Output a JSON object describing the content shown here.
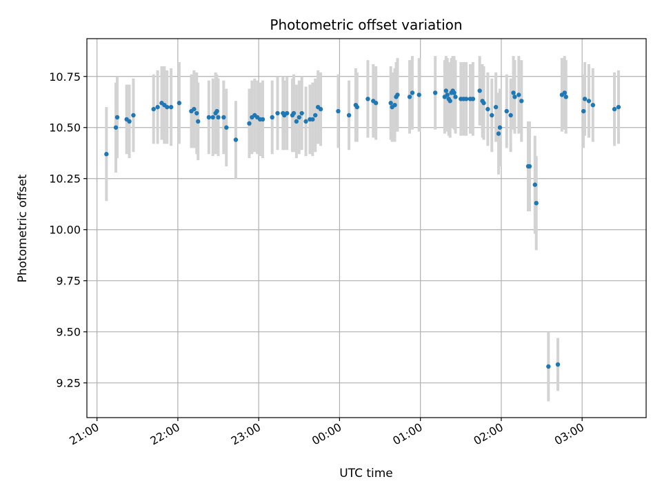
{
  "chart_data": {
    "type": "scatter",
    "title": "Photometric offset variation",
    "xlabel": "UTC time",
    "ylabel": "Photometric offset",
    "x_tick_labels": [
      "21:00",
      "22:00",
      "23:00",
      "00:00",
      "01:00",
      "02:00",
      "03:00"
    ],
    "y_tick_labels": [
      "9.25",
      "9.50",
      "9.75",
      "10.00",
      "10.25",
      "10.50",
      "10.75"
    ],
    "grid": true,
    "colors": {
      "points": "#1f77b4",
      "errorbars": "#d3d3d3",
      "grid": "#b0b0b0"
    },
    "series": [
      {
        "x": [
          "21:07",
          "21:14",
          "21:15",
          "21:22",
          "21:24",
          "21:27",
          "21:42",
          "21:45",
          "21:48",
          "21:50",
          "21:52",
          "21:55",
          "22:01",
          "22:10",
          "22:12",
          "22:14",
          "22:15",
          "22:23",
          "22:26",
          "22:28",
          "22:29",
          "22:30",
          "22:34",
          "22:36",
          "22:43",
          "22:53",
          "22:55",
          "22:57",
          "22:59",
          "23:01",
          "23:03",
          "23:10",
          "23:14",
          "23:18",
          "23:19",
          "23:21",
          "23:25",
          "23:26",
          "23:28",
          "23:30",
          "23:32",
          "23:35",
          "23:38",
          "23:40",
          "23:42",
          "23:44",
          "23:46",
          "23:59",
          "00:07",
          "00:12",
          "00:13",
          "00:21",
          "00:25",
          "00:27",
          "00:38",
          "00:39",
          "00:41",
          "00:42",
          "00:43",
          "00:52",
          "00:54",
          "00:59",
          "01:11",
          "01:18",
          "01:19",
          "01:20",
          "01:21",
          "01:22",
          "01:23",
          "01:24",
          "01:25",
          "01:26",
          "01:30",
          "01:32",
          "01:34",
          "01:37",
          "01:39",
          "01:44",
          "01:46",
          "01:47",
          "01:50",
          "01:53",
          "01:56",
          "01:58",
          "01:59",
          "02:04",
          "02:07",
          "02:09",
          "02:10",
          "02:13",
          "02:15",
          "02:20",
          "02:21",
          "02:25",
          "02:26",
          "02:35",
          "02:42",
          "02:45",
          "02:47",
          "02:48",
          "03:01",
          "03:02",
          "03:05",
          "03:08",
          "03:24",
          "03:27"
        ],
        "y": [
          10.37,
          10.5,
          10.55,
          10.54,
          10.53,
          10.56,
          10.59,
          10.6,
          10.62,
          10.61,
          10.6,
          10.6,
          10.62,
          10.58,
          10.59,
          10.57,
          10.53,
          10.55,
          10.55,
          10.57,
          10.58,
          10.55,
          10.55,
          10.5,
          10.44,
          10.52,
          10.55,
          10.56,
          10.55,
          10.54,
          10.54,
          10.55,
          10.57,
          10.57,
          10.56,
          10.57,
          10.56,
          10.57,
          10.53,
          10.55,
          10.57,
          10.53,
          10.54,
          10.54,
          10.56,
          10.6,
          10.59,
          10.58,
          10.56,
          10.61,
          10.6,
          10.64,
          10.63,
          10.62,
          10.62,
          10.6,
          10.61,
          10.65,
          10.66,
          10.65,
          10.67,
          10.66,
          10.67,
          10.65,
          10.68,
          10.66,
          10.64,
          10.63,
          10.67,
          10.68,
          10.67,
          10.65,
          10.64,
          10.64,
          10.64,
          10.64,
          10.64,
          10.68,
          10.63,
          10.62,
          10.59,
          10.56,
          10.6,
          10.47,
          10.5,
          10.58,
          10.56,
          10.67,
          10.65,
          10.66,
          10.63,
          10.31,
          10.31,
          10.22,
          10.13,
          9.33,
          9.34,
          10.66,
          10.67,
          10.65,
          10.58,
          10.64,
          10.63,
          10.61,
          10.59,
          10.6
        ],
        "err": [
          0.23,
          0.22,
          0.2,
          0.17,
          0.18,
          0.18,
          0.17,
          0.18,
          0.18,
          0.19,
          0.18,
          0.19,
          0.2,
          0.18,
          0.19,
          0.2,
          0.19,
          0.18,
          0.19,
          0.2,
          0.18,
          0.19,
          0.18,
          0.19,
          0.19,
          0.17,
          0.18,
          0.18,
          0.18,
          0.18,
          0.19,
          0.18,
          0.18,
          0.18,
          0.17,
          0.18,
          0.18,
          0.19,
          0.18,
          0.18,
          0.18,
          0.17,
          0.17,
          0.18,
          0.18,
          0.18,
          0.18,
          0.18,
          0.17,
          0.18,
          0.17,
          0.19,
          0.18,
          0.18,
          0.18,
          0.17,
          0.18,
          0.17,
          0.18,
          0.18,
          0.18,
          0.18,
          0.18,
          0.18,
          0.17,
          0.18,
          0.18,
          0.18,
          0.17,
          0.17,
          0.18,
          0.18,
          0.18,
          0.18,
          0.18,
          0.17,
          0.18,
          0.17,
          0.18,
          0.18,
          0.18,
          0.18,
          0.17,
          0.2,
          0.19,
          0.18,
          0.18,
          0.18,
          0.18,
          0.19,
          0.2,
          0.22,
          0.22,
          0.24,
          0.23,
          0.17,
          0.13,
          0.18,
          0.18,
          0.18,
          0.18,
          0.18,
          0.18,
          0.18,
          0.18,
          0.18
        ]
      }
    ]
  }
}
